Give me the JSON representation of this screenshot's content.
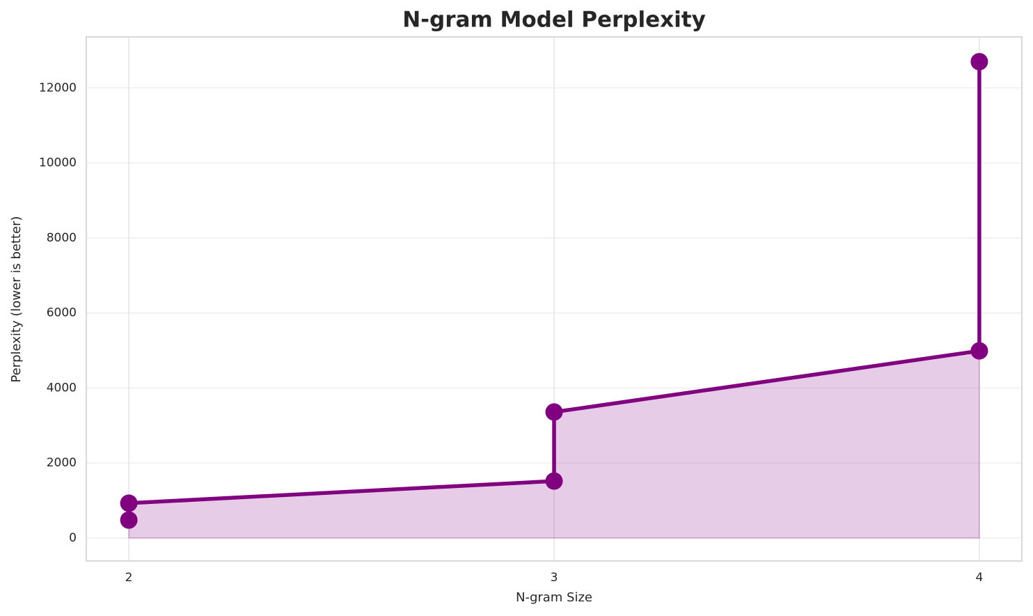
{
  "chart_data": {
    "type": "line",
    "title": "N-gram Model Perplexity",
    "x_label": "N-gram Size",
    "y_label": "Perplexity (lower is better)",
    "x": [
      2,
      2,
      3,
      3,
      4,
      4
    ],
    "series": [
      {
        "name": "Perplexity",
        "color": "#800080",
        "values": [
          480,
          930,
          1520,
          3360,
          4990,
          12700
        ]
      }
    ],
    "xlim": [
      1.9,
      4.1
    ],
    "xticks": [
      2,
      3,
      4
    ],
    "ylim": [
      -612,
      13360
    ],
    "yticks": [
      0,
      2000,
      4000,
      6000,
      8000,
      10000,
      12000
    ],
    "grid": true,
    "fill": true
  }
}
